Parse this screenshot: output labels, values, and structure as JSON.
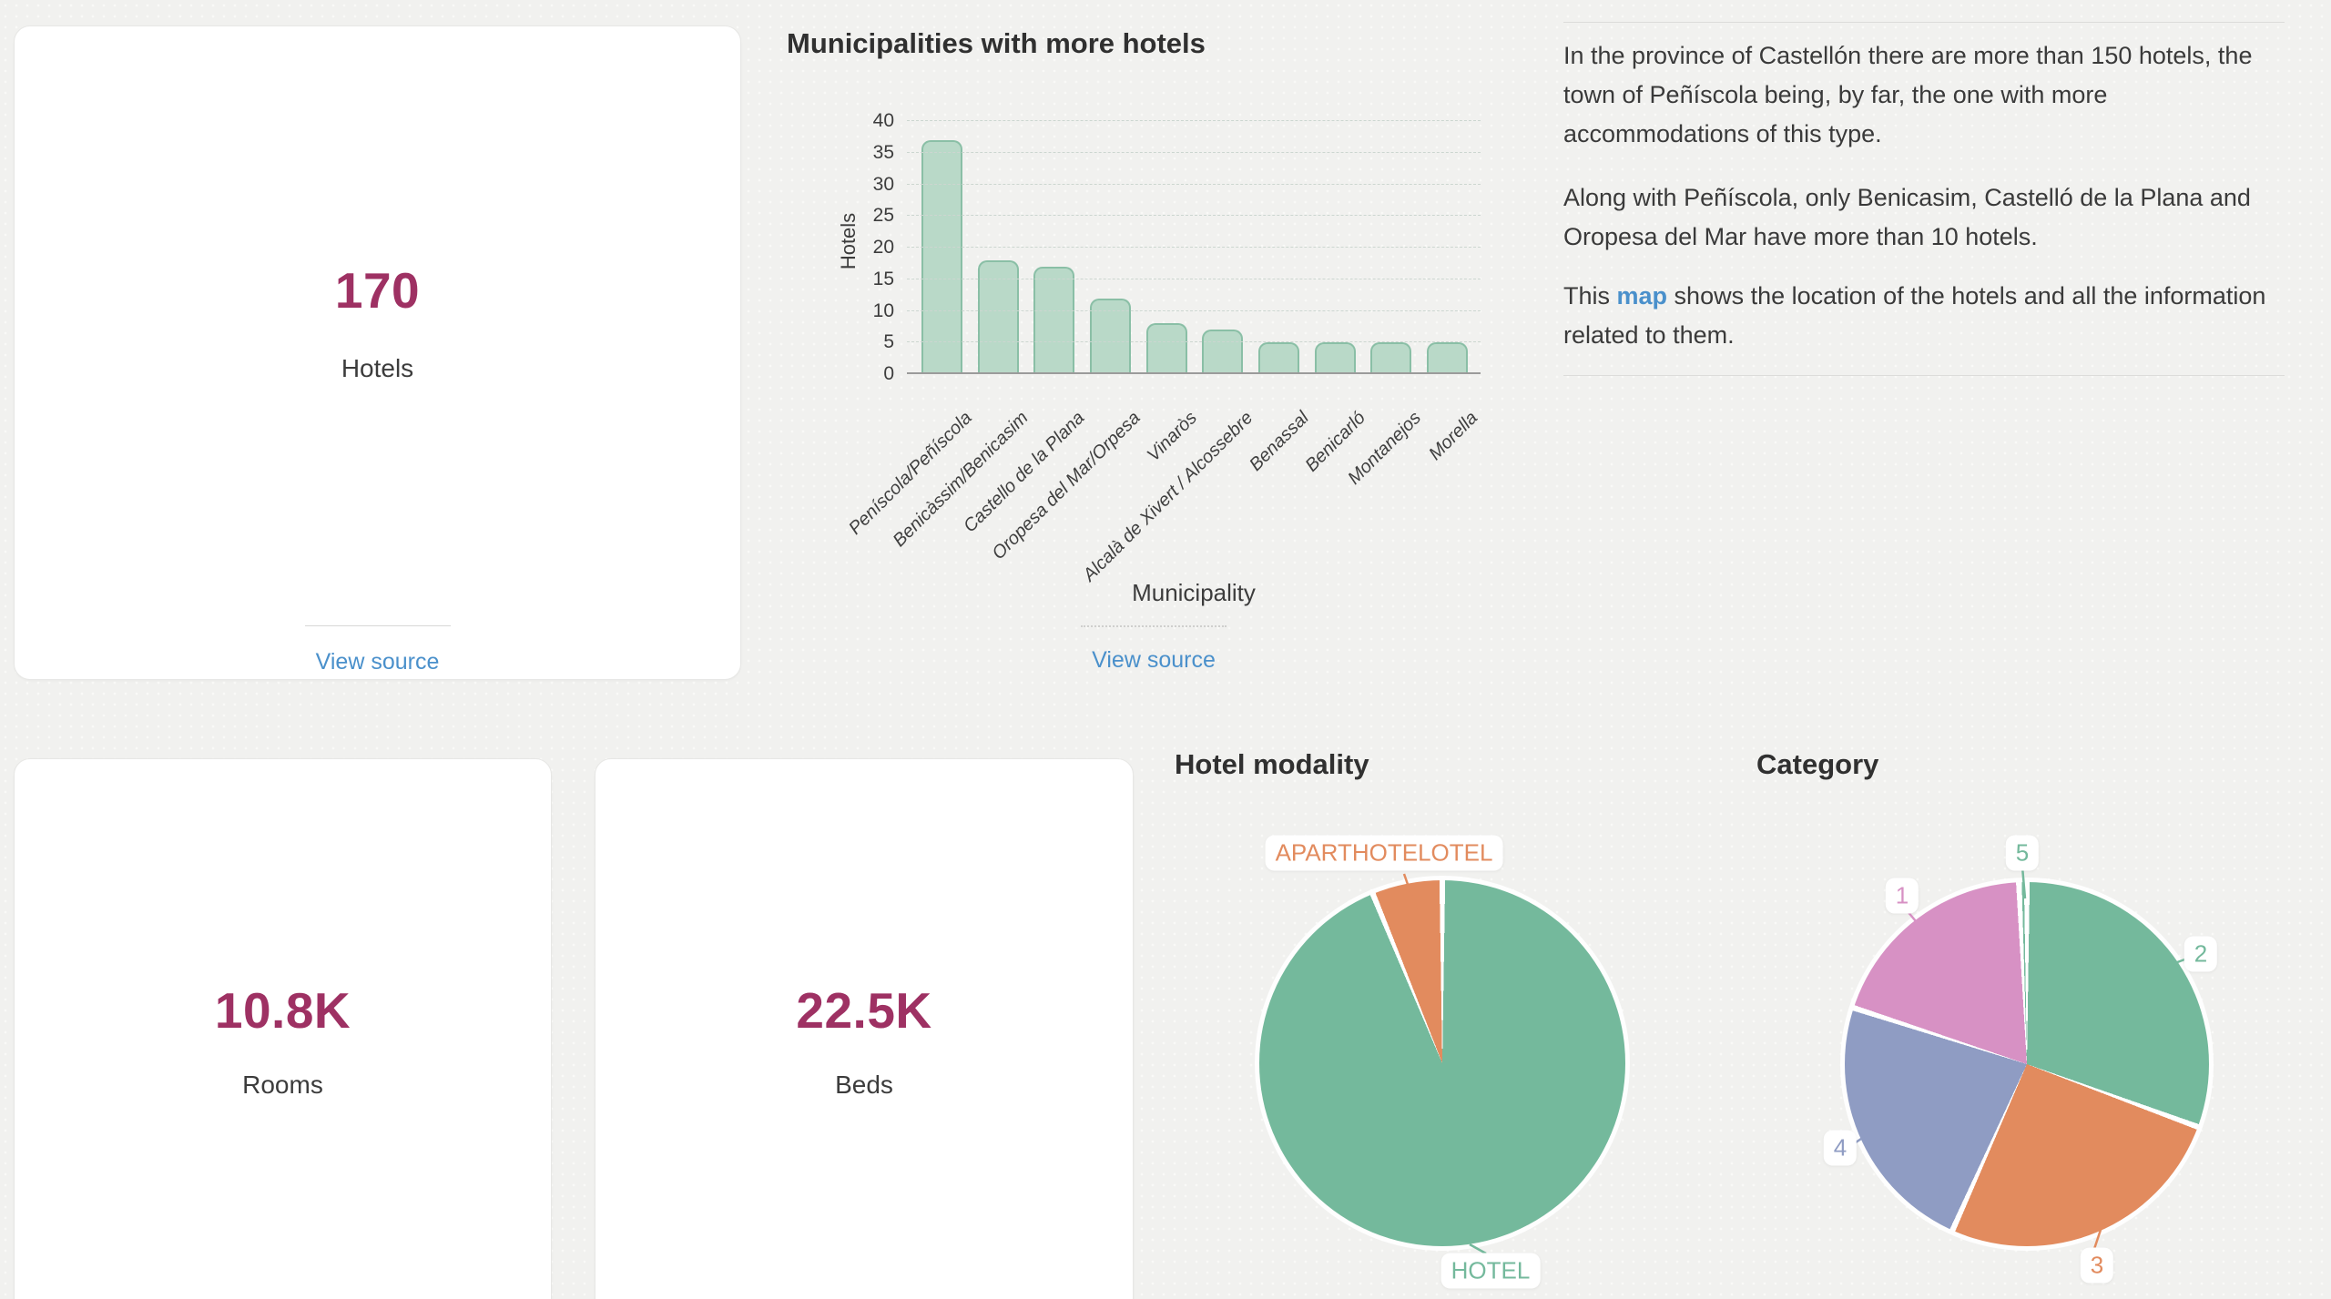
{
  "theme": {
    "bg": "#f1f1ef",
    "card_bg": "#ffffff",
    "card_border": "#e7e7e5",
    "value_color": "#9e3163",
    "text_color": "#3c3c3c",
    "title_color": "#303030",
    "link_color": "#4a90cb",
    "divider": "#d8d8d6",
    "bar_fill": "#b9d9c8",
    "bar_border": "#8abfa6",
    "grid_color": "#ccd6d0",
    "axis_color": "#9b9b9b"
  },
  "cards": {
    "hotels": {
      "value": "170",
      "label": "Hotels",
      "source_link": "View source"
    },
    "rooms": {
      "value": "10.8K",
      "label": "Rooms"
    },
    "beds": {
      "value": "22.5K",
      "label": "Beds"
    }
  },
  "bar_chart": {
    "source_link": "View source"
  },
  "text_panel": {
    "p1": "In the province of Castellón there are more than 150 hotels, the town of Peñíscola being, by far, the one with more accommodations of this type.",
    "p2": "Along with Peñíscola, only Benicasim, Castelló de la Plana and Oropesa del Mar have more than 10 hotels.",
    "p3_before": "This ",
    "p3_link": "map",
    "p3_after": " shows the location of the hotels and all the information related to them."
  },
  "chart_data": [
    {
      "type": "bar",
      "title": "Municipalities with more hotels",
      "categories": [
        "Peníscola/Peñíscola",
        "Benicàssim/Benicasim",
        "Castello de la Plana",
        "Oropesa del Mar/Orpesa",
        "Vinaròs",
        "Alcalà de Xivert / Alcossebre",
        "Benassal",
        "Benicarló",
        "Montanejos",
        "Morella"
      ],
      "values": [
        37,
        18,
        17,
        12,
        8,
        7,
        5,
        5,
        5,
        5
      ],
      "xlabel": "Municipality",
      "ylabel": "Hotels",
      "ylim": [
        0,
        40
      ],
      "yticks": [
        0,
        5,
        10,
        15,
        20,
        25,
        30,
        35,
        40
      ],
      "grid": true,
      "legend": "none"
    },
    {
      "type": "pie",
      "title": "Hotel modality",
      "labels": [
        "HOTEL",
        "APARTHOTELOTEL"
      ],
      "values_pct": [
        93.8,
        6.2
      ],
      "colors": [
        "#74b99c",
        "#e28b5e"
      ],
      "order": "clockwise from 12 o'clock"
    },
    {
      "type": "pie",
      "title": "Category",
      "labels": [
        "2",
        "3",
        "4",
        "1",
        "5"
      ],
      "values_pct": [
        30.6,
        26.1,
        23.3,
        19.3,
        0.7
      ],
      "colors": [
        "#74b99c",
        "#e28b5e",
        "#8f9cc3",
        "#d791c4",
        "#74b99c"
      ],
      "order": "clockwise from 12 o'clock"
    }
  ]
}
